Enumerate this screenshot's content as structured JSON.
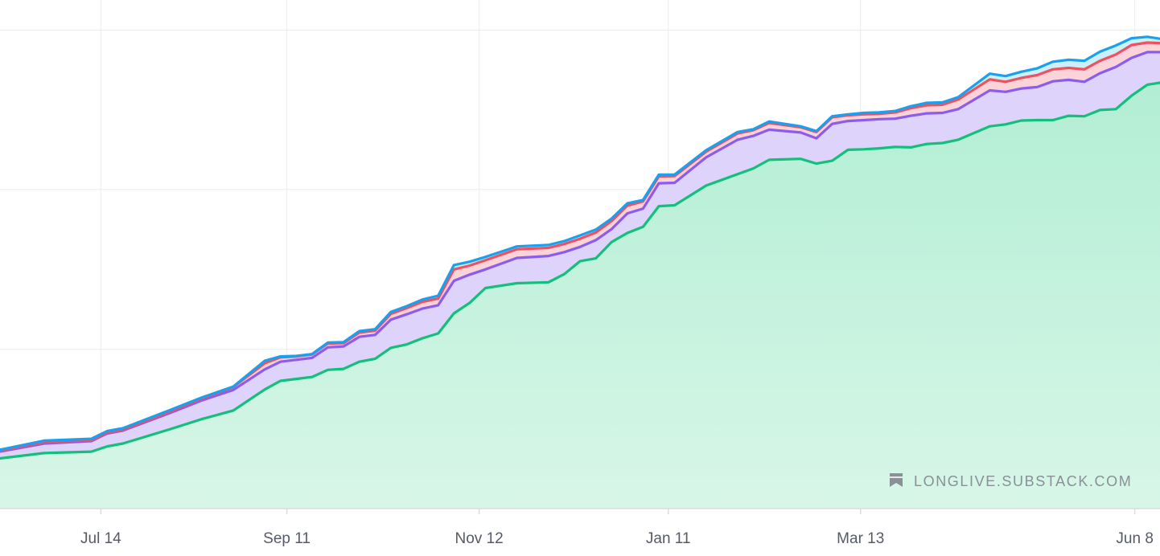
{
  "chart_data": {
    "type": "area",
    "title": "",
    "xlabel": "",
    "ylabel": "",
    "x_tick_labels": [
      "Jul 14",
      "Sep 11",
      "Nov 12",
      "Jan 11",
      "Mar 13",
      "Jun 8"
    ],
    "x_tick_days": [
      18,
      77,
      138,
      198,
      259,
      346
    ],
    "x_range_days": [
      -14,
      354
    ],
    "y_range": [
      0,
      100
    ],
    "y_gridlines": [
      33.3,
      66.7,
      100
    ],
    "grid": true,
    "legend": "none",
    "colors": {
      "series_1": "#1aa0f0",
      "series_2": "#f05060",
      "series_3": "#8a5cf0",
      "series_4": "#12c07a",
      "band_1": "#cdeffa",
      "band_2": "#fbd3d8",
      "band_3": "#ddd3fb",
      "band_4_top": "#b8f0d8",
      "band_4_bottom": "#d6f5e6"
    },
    "x": [
      -14,
      0,
      15,
      20,
      25,
      40,
      50,
      60,
      70,
      75,
      80,
      85,
      90,
      95,
      100,
      105,
      110,
      115,
      120,
      125,
      130,
      135,
      140,
      150,
      160,
      165,
      170,
      175,
      180,
      185,
      190,
      195,
      200,
      210,
      220,
      225,
      230,
      240,
      245,
      250,
      255,
      260,
      265,
      270,
      275,
      280,
      285,
      290,
      300,
      305,
      310,
      315,
      320,
      325,
      330,
      335,
      340,
      345,
      350,
      354
    ],
    "series": [
      {
        "values": [
          12.3,
          14.2,
          14.6,
          16.2,
          16.8,
          20.6,
          23.2,
          25.5,
          30.9,
          31.8,
          31.9,
          32.3,
          34.7,
          34.8,
          37.1,
          37.5,
          41.1,
          42.3,
          43.7,
          44.5,
          50.9,
          51.6,
          52.6,
          54.8,
          55.1,
          55.9,
          57.1,
          58.3,
          60.6,
          63.8,
          64.5,
          69.8,
          69.8,
          74.9,
          78.7,
          79.3,
          80.9,
          79.9,
          78.9,
          82.0,
          82.4,
          82.7,
          82.8,
          83.1,
          84.1,
          84.8,
          84.9,
          86.0,
          90.9,
          90.4,
          91.3,
          92.0,
          93.4,
          93.8,
          93.6,
          95.5,
          96.8,
          98.3,
          98.6,
          98.2
        ]
      },
      {
        "values": [
          12.1,
          13.9,
          14.3,
          15.9,
          16.5,
          20.3,
          23.0,
          25.4,
          30.4,
          31.6,
          31.8,
          32.2,
          34.5,
          34.6,
          36.8,
          37.2,
          40.7,
          41.9,
          43.2,
          43.9,
          50.0,
          50.8,
          51.9,
          54.2,
          54.5,
          55.3,
          56.4,
          57.7,
          60.1,
          63.3,
          64.2,
          69.4,
          69.5,
          74.6,
          78.4,
          79.1,
          80.6,
          79.7,
          78.7,
          81.8,
          82.2,
          82.4,
          82.5,
          82.8,
          83.7,
          84.3,
          84.4,
          85.5,
          89.7,
          89.2,
          90.0,
          90.6,
          91.8,
          92.1,
          91.8,
          93.6,
          94.9,
          96.9,
          97.4,
          97.3
        ]
      },
      {
        "values": [
          11.9,
          13.6,
          14.1,
          15.7,
          16.3,
          20.0,
          22.6,
          24.8,
          29.1,
          30.7,
          31.1,
          31.5,
          33.7,
          33.9,
          35.9,
          36.3,
          39.5,
          40.6,
          41.8,
          42.5,
          47.6,
          48.9,
          50.0,
          52.4,
          52.8,
          53.6,
          54.7,
          56.1,
          58.4,
          61.7,
          62.7,
          68.0,
          68.1,
          73.4,
          77.1,
          77.9,
          79.2,
          78.6,
          77.4,
          80.4,
          81.0,
          81.2,
          81.4,
          81.5,
          82.1,
          82.6,
          82.7,
          83.5,
          87.4,
          87.1,
          87.8,
          88.1,
          89.3,
          89.6,
          89.2,
          91.0,
          92.3,
          94.2,
          95.4,
          95.4
        ]
      },
      {
        "values": [
          10.5,
          11.6,
          11.9,
          13.0,
          13.6,
          16.6,
          18.7,
          20.5,
          24.9,
          26.7,
          27.1,
          27.5,
          29.0,
          29.2,
          30.7,
          31.3,
          33.6,
          34.3,
          35.6,
          36.6,
          40.8,
          43.0,
          46.1,
          47.1,
          47.3,
          49.0,
          51.7,
          52.3,
          55.7,
          57.6,
          58.9,
          63.2,
          63.4,
          67.5,
          69.9,
          71.1,
          72.9,
          73.1,
          72.1,
          72.7,
          75.0,
          75.1,
          75.3,
          75.6,
          75.5,
          76.2,
          76.4,
          77.1,
          79.9,
          80.3,
          81.1,
          81.2,
          81.2,
          82.1,
          82.0,
          83.3,
          83.5,
          86.3,
          88.6,
          89.0
        ]
      }
    ]
  },
  "watermark": {
    "icon": "bookmark-icon",
    "text": "LONGLIVE.SUBSTACK.COM"
  }
}
